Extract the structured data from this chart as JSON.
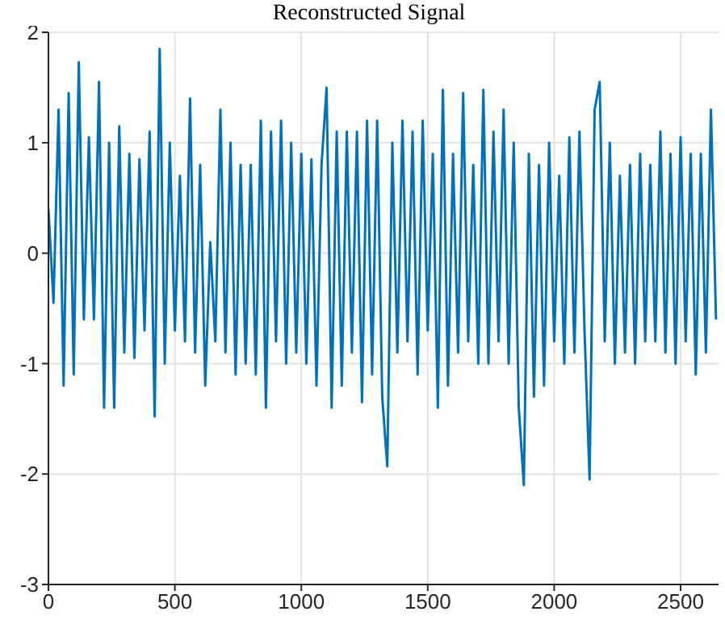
{
  "chart_data": {
    "type": "line",
    "title": "Reconstructed Signal",
    "x": [
      0,
      20,
      40,
      60,
      80,
      100,
      120,
      140,
      160,
      180,
      200,
      220,
      240,
      260,
      280,
      300,
      320,
      340,
      360,
      380,
      400,
      420,
      440,
      460,
      480,
      500,
      520,
      540,
      560,
      580,
      600,
      620,
      640,
      660,
      680,
      700,
      720,
      740,
      760,
      780,
      800,
      820,
      840,
      860,
      880,
      900,
      920,
      940,
      960,
      980,
      1000,
      1020,
      1040,
      1060,
      1080,
      1100,
      1120,
      1140,
      1160,
      1180,
      1200,
      1220,
      1240,
      1260,
      1280,
      1300,
      1320,
      1340,
      1360,
      1380,
      1400,
      1420,
      1440,
      1460,
      1480,
      1500,
      1520,
      1540,
      1560,
      1580,
      1600,
      1620,
      1640,
      1660,
      1680,
      1700,
      1720,
      1740,
      1760,
      1780,
      1800,
      1820,
      1840,
      1860,
      1880,
      1900,
      1920,
      1940,
      1960,
      1980,
      2000,
      2020,
      2040,
      2060,
      2080,
      2100,
      2120,
      2140,
      2160,
      2180,
      2200,
      2220,
      2240,
      2260,
      2280,
      2300,
      2320,
      2340,
      2360,
      2380,
      2400,
      2420,
      2440,
      2460,
      2480,
      2500,
      2520,
      2540,
      2560,
      2580,
      2600,
      2620,
      2640
    ],
    "series": [
      {
        "color": "#0072bd",
        "values": [
          0.4,
          -0.45,
          1.3,
          -1.2,
          1.45,
          -1.1,
          1.73,
          -0.6,
          1.05,
          -0.6,
          1.55,
          -1.4,
          1.0,
          -1.4,
          1.15,
          -0.9,
          0.9,
          -0.95,
          0.85,
          -0.7,
          1.1,
          -1.48,
          1.85,
          -1.0,
          1.0,
          -0.7,
          0.7,
          -0.8,
          1.4,
          -0.9,
          0.8,
          -1.2,
          0.1,
          -0.8,
          1.3,
          -0.9,
          1.0,
          -1.1,
          0.8,
          -1.0,
          0.8,
          -1.1,
          1.2,
          -1.4,
          1.1,
          -0.8,
          1.2,
          -1.0,
          1.0,
          -0.9,
          0.9,
          -1.0,
          0.85,
          -1.2,
          0.8,
          1.5,
          -1.4,
          1.1,
          -1.2,
          1.1,
          -0.9,
          1.1,
          -1.35,
          1.2,
          -1.1,
          1.2,
          -1.3,
          -1.93,
          1.0,
          -0.9,
          1.2,
          -0.8,
          1.1,
          -1.1,
          1.2,
          -0.7,
          0.9,
          -1.4,
          1.48,
          -1.2,
          0.9,
          -0.9,
          1.45,
          -0.8,
          0.8,
          -1.0,
          1.48,
          -1.0,
          1.1,
          -0.8,
          1.3,
          -1.0,
          1.0,
          -1.4,
          -2.1,
          0.9,
          -1.3,
          0.8,
          -1.2,
          1.0,
          -0.8,
          0.7,
          -1.0,
          1.05,
          -0.9,
          1.1,
          -0.7,
          -2.05,
          1.3,
          1.55,
          -0.8,
          1.0,
          -1.0,
          0.7,
          -0.9,
          0.8,
          -1.0,
          0.9,
          -0.8,
          0.8,
          -0.8,
          1.1,
          -0.9,
          0.9,
          -1.0,
          1.05,
          -0.8,
          0.9,
          -1.1,
          0.9,
          -0.9,
          1.3,
          -0.6
        ]
      }
    ],
    "xlim": [
      0,
      2650
    ],
    "xticks": [
      0,
      500,
      1000,
      1500,
      2000,
      2500
    ],
    "ylim": [
      -3,
      2
    ],
    "yticks": [
      -3,
      -2,
      -1,
      0,
      1,
      2
    ],
    "grid": true,
    "legend": false,
    "marker": "none",
    "line_style": "solid"
  }
}
